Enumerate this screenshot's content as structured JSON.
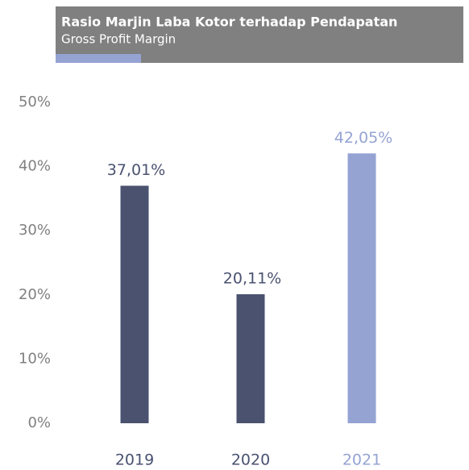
{
  "chart_data": {
    "type": "bar",
    "title": "Rasio Marjin Laba Kotor terhadap Pendapatan",
    "subtitle": "Gross Profit Margin",
    "categories": [
      "2019",
      "2020",
      "2021"
    ],
    "values": [
      37.01,
      20.11,
      42.05
    ],
    "value_labels": [
      "37,01%",
      "20,11%",
      "42,05%"
    ],
    "colors": [
      "#4a5270",
      "#4a5270",
      "#95a3d3"
    ],
    "ylim": [
      0,
      50
    ],
    "yticks": [
      {
        "value": 0,
        "label": "0%"
      },
      {
        "value": 10,
        "label": "10%"
      },
      {
        "value": 20,
        "label": "20%"
      },
      {
        "value": 30,
        "label": "30%"
      },
      {
        "value": 40,
        "label": "40%"
      },
      {
        "value": 50,
        "label": "50%"
      }
    ],
    "grid": false
  }
}
